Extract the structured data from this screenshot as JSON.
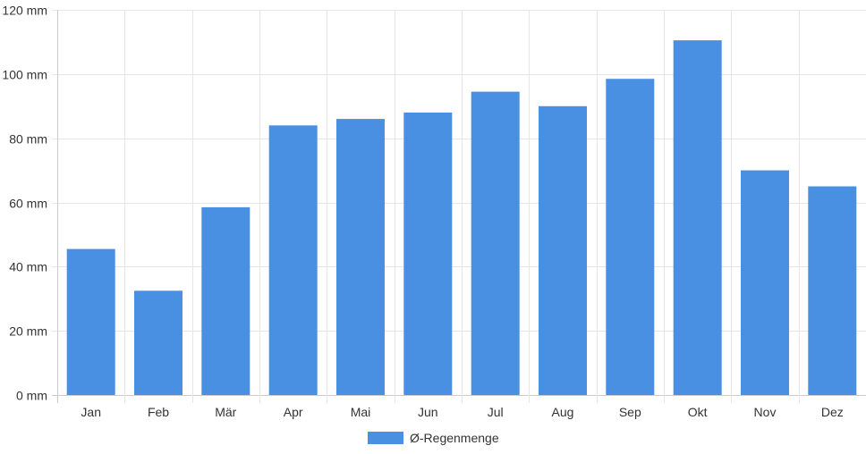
{
  "chart_data": {
    "type": "bar",
    "categories": [
      "Jan",
      "Feb",
      "Mär",
      "Apr",
      "Mai",
      "Jun",
      "Jul",
      "Aug",
      "Sep",
      "Okt",
      "Nov",
      "Dez"
    ],
    "series": [
      {
        "name": "Ø-Regenmenge",
        "values": [
          45.5,
          32.5,
          58.5,
          84,
          86,
          88,
          94.5,
          90,
          98.5,
          110.5,
          70,
          65
        ],
        "color": "#4a90e2"
      }
    ],
    "y_ticks": [
      "0 mm",
      "20 mm",
      "40 mm",
      "60 mm",
      "80 mm",
      "100 mm",
      "120 mm"
    ],
    "ylim": [
      0,
      120
    ],
    "unit": "mm",
    "grid": true,
    "legend_position": "bottom-center",
    "colors": {
      "bar": "#4a90e2",
      "grid": "#e6e6e6",
      "axis": "#cccccc",
      "text": "#333333"
    }
  }
}
